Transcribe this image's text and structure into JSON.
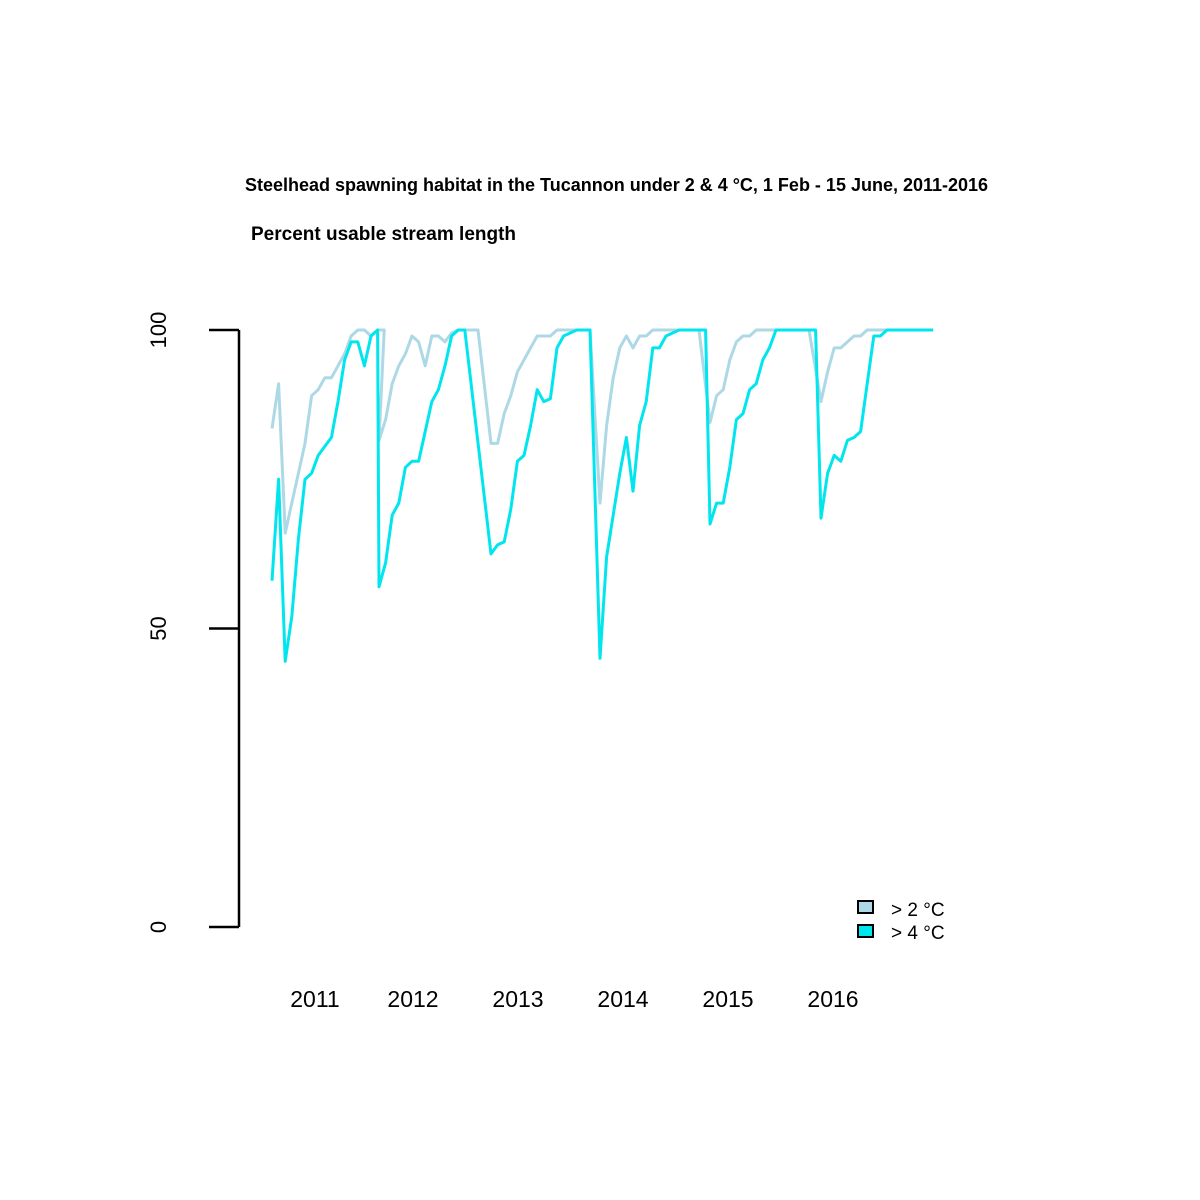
{
  "chart_data": {
    "type": "line",
    "title": "Steelhead spawning habitat in the Tucannon under 2 & 4 °C, 1 Feb - 15 June, 2011-2016",
    "subtitle": "Percent usable stream length",
    "xlabel": "",
    "ylabel": "",
    "ylim": [
      0,
      100
    ],
    "y_ticks": [
      "0",
      "50",
      "100"
    ],
    "y_tick_values": [
      0,
      50,
      100
    ],
    "grid": false,
    "legend_position": "bottom-right",
    "colors": {
      "s2": "#add8e6",
      "s4": "#00e5ee"
    },
    "years": [
      "2011",
      "2012",
      "2013",
      "2014",
      "2015",
      "2016"
    ],
    "series": [
      {
        "name": "> 2 °C",
        "color": "#add8e6",
        "segments": [
          {
            "year": "2011",
            "values": [
              83.5,
              91,
              66,
              71,
              76,
              81,
              89,
              90,
              92,
              92,
              94,
              96,
              99,
              100,
              100,
              99,
              100,
              100
            ]
          },
          {
            "year": "2012",
            "values": [
              81.5,
              85,
              91,
              94,
              96,
              99,
              98,
              94,
              99,
              99,
              98,
              99.5,
              100,
              100,
              100,
              100
            ]
          },
          {
            "year": "2013",
            "values": [
              81,
              81,
              86,
              89,
              93,
              95,
              97,
              99,
              99,
              99,
              100,
              100,
              100,
              100,
              100,
              100
            ]
          },
          {
            "year": "2014",
            "values": [
              71,
              84,
              92,
              97,
              99,
              97,
              99,
              99,
              100,
              100,
              100,
              100,
              100,
              100,
              100,
              100
            ]
          },
          {
            "year": "2015",
            "values": [
              84.5,
              89,
              90,
              95,
              98,
              99,
              99,
              100,
              100,
              100,
              100,
              100,
              100,
              100,
              100,
              100
            ]
          },
          {
            "year": "2016",
            "values": [
              88,
              93,
              97,
              97,
              98,
              99,
              99,
              100,
              100,
              100,
              100,
              100,
              100,
              100,
              100,
              100,
              100
            ]
          }
        ]
      },
      {
        "name": "> 4 °C",
        "color": "#00e5ee",
        "segments": [
          {
            "year": "2011",
            "values": [
              58,
              75,
              44.5,
              52,
              65,
              75,
              76,
              79,
              80.5,
              82,
              88,
              95,
              98,
              98,
              94,
              99,
              100
            ]
          },
          {
            "year": "2012",
            "values": [
              57,
              61,
              69,
              71,
              77,
              78,
              78,
              83,
              88,
              90,
              94,
              99,
              100,
              100
            ]
          },
          {
            "year": "2013",
            "values": [
              62.5,
              64,
              64.5,
              70,
              78,
              79,
              84,
              90,
              88,
              88.5,
              97,
              99,
              99.5,
              100,
              100,
              100
            ]
          },
          {
            "year": "2014",
            "values": [
              45,
              62,
              69,
              76,
              82,
              73,
              84,
              88,
              97,
              97,
              99,
              99.5,
              100,
              100,
              100,
              100,
              100
            ]
          },
          {
            "year": "2015",
            "values": [
              67.5,
              71,
              71,
              77,
              85,
              86,
              90,
              91,
              95,
              97,
              100,
              100,
              100,
              100,
              100,
              100,
              100
            ]
          },
          {
            "year": "2016",
            "values": [
              68.5,
              76,
              79,
              78,
              81.5,
              82,
              83,
              91,
              99,
              99,
              100,
              100,
              100,
              100,
              100,
              100,
              100,
              100
            ]
          }
        ]
      }
    ]
  }
}
